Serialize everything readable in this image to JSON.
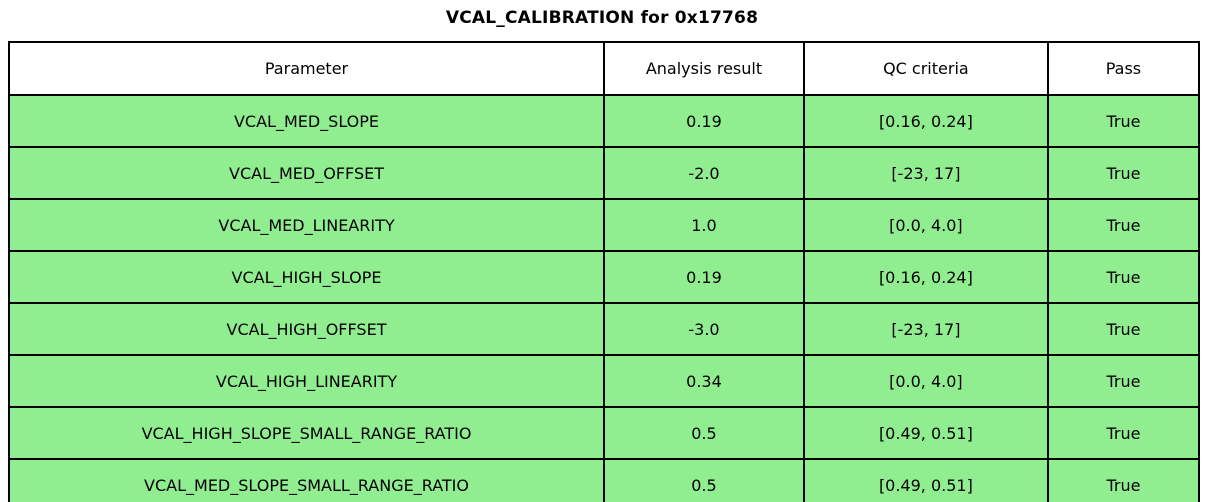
{
  "title": "VCAL_CALIBRATION for 0x17768",
  "table": {
    "headers": {
      "parameter": "Parameter",
      "result": "Analysis result",
      "criteria": "QC criteria",
      "pass": "Pass"
    },
    "rows": [
      {
        "parameter": "VCAL_MED_SLOPE",
        "result": "0.19",
        "criteria": "[0.16, 0.24]",
        "pass": "True"
      },
      {
        "parameter": "VCAL_MED_OFFSET",
        "result": "-2.0",
        "criteria": "[-23, 17]",
        "pass": "True"
      },
      {
        "parameter": "VCAL_MED_LINEARITY",
        "result": "1.0",
        "criteria": "[0.0, 4.0]",
        "pass": "True"
      },
      {
        "parameter": "VCAL_HIGH_SLOPE",
        "result": "0.19",
        "criteria": "[0.16, 0.24]",
        "pass": "True"
      },
      {
        "parameter": "VCAL_HIGH_OFFSET",
        "result": "-3.0",
        "criteria": "[-23, 17]",
        "pass": "True"
      },
      {
        "parameter": "VCAL_HIGH_LINEARITY",
        "result": "0.34",
        "criteria": "[0.0, 4.0]",
        "pass": "True"
      },
      {
        "parameter": "VCAL_HIGH_SLOPE_SMALL_RANGE_RATIO",
        "result": "0.5",
        "criteria": "[0.49, 0.51]",
        "pass": "True"
      },
      {
        "parameter": "VCAL_MED_SLOPE_SMALL_RANGE_RATIO",
        "result": "0.5",
        "criteria": "[0.49, 0.51]",
        "pass": "True"
      }
    ]
  },
  "colors": {
    "pass_row_bg": "#90EE90",
    "header_bg": "#FFFFFF",
    "border": "#000000",
    "text": "#000000"
  },
  "chart_data": {
    "type": "table",
    "title": "VCAL_CALIBRATION for 0x17768",
    "columns": [
      "Parameter",
      "Analysis result",
      "QC criteria",
      "Pass"
    ],
    "rows": [
      [
        "VCAL_MED_SLOPE",
        "0.19",
        "[0.16, 0.24]",
        "True"
      ],
      [
        "VCAL_MED_OFFSET",
        "-2.0",
        "[-23, 17]",
        "True"
      ],
      [
        "VCAL_MED_LINEARITY",
        "1.0",
        "[0.0, 4.0]",
        "True"
      ],
      [
        "VCAL_HIGH_SLOPE",
        "0.19",
        "[0.16, 0.24]",
        "True"
      ],
      [
        "VCAL_HIGH_OFFSET",
        "-3.0",
        "[-23, 17]",
        "True"
      ],
      [
        "VCAL_HIGH_LINEARITY",
        "0.34",
        "[0.0, 4.0]",
        "True"
      ],
      [
        "VCAL_HIGH_SLOPE_SMALL_RANGE_RATIO",
        "0.5",
        "[0.49, 0.51]",
        "True"
      ],
      [
        "VCAL_MED_SLOPE_SMALL_RANGE_RATIO",
        "0.5",
        "[0.49, 0.51]",
        "True"
      ]
    ]
  }
}
